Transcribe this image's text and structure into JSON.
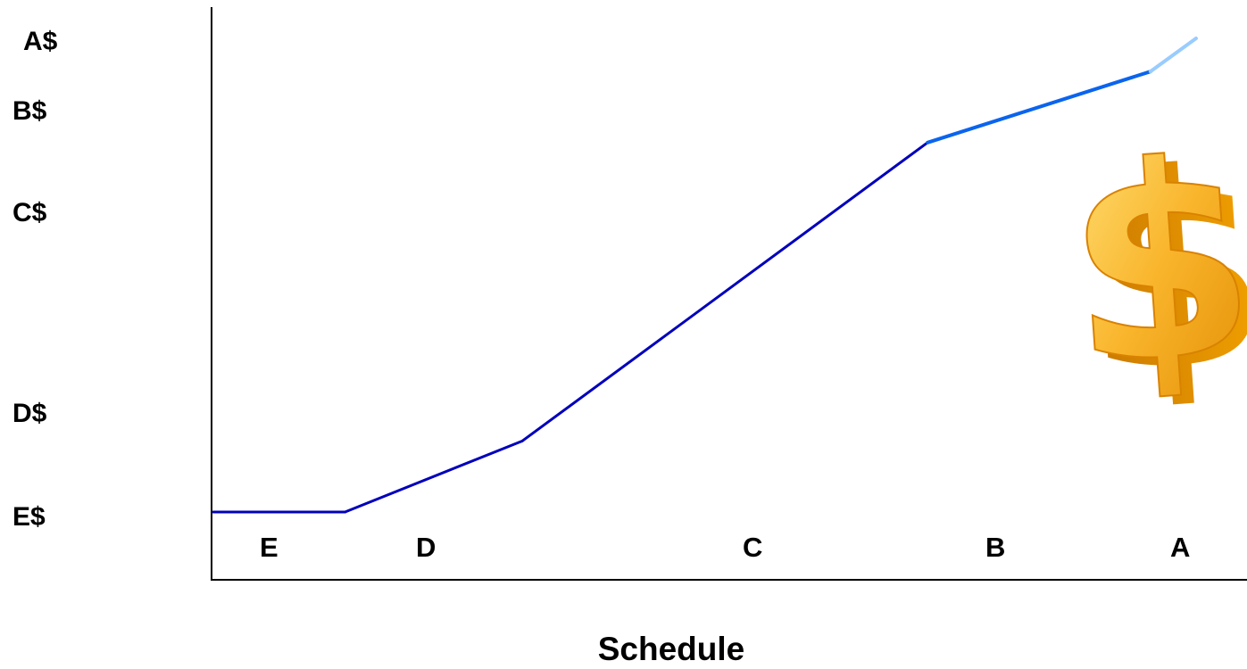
{
  "chart_data": {
    "type": "line",
    "title": "",
    "xlabel": "Schedule",
    "ylabel": "",
    "x_categories": [
      "E",
      "D",
      "C",
      "B",
      "A"
    ],
    "y_categories": [
      "A$",
      "B$",
      "C$",
      "D$",
      "E$"
    ],
    "ylim": [
      0,
      100
    ],
    "grid": false,
    "legend": "none",
    "series": [
      {
        "color": "#0000bb",
        "points": [
          {
            "x": 0.0,
            "y": 0
          },
          {
            "x": 13.0,
            "y": 0
          },
          {
            "x": 30.5,
            "y": 15
          },
          {
            "x": 70.5,
            "y": 78
          }
        ]
      },
      {
        "color": "#0a64ee",
        "points": [
          {
            "x": 70.5,
            "y": 78
          },
          {
            "x": 92.5,
            "y": 93
          }
        ]
      },
      {
        "color": "#99ccff",
        "points": [
          {
            "x": 92.5,
            "y": 93
          },
          {
            "x": 97.0,
            "y": 100
          }
        ]
      }
    ]
  },
  "icon": {
    "name": "dollar-sign-3d-icon",
    "color": "#f7a622"
  }
}
